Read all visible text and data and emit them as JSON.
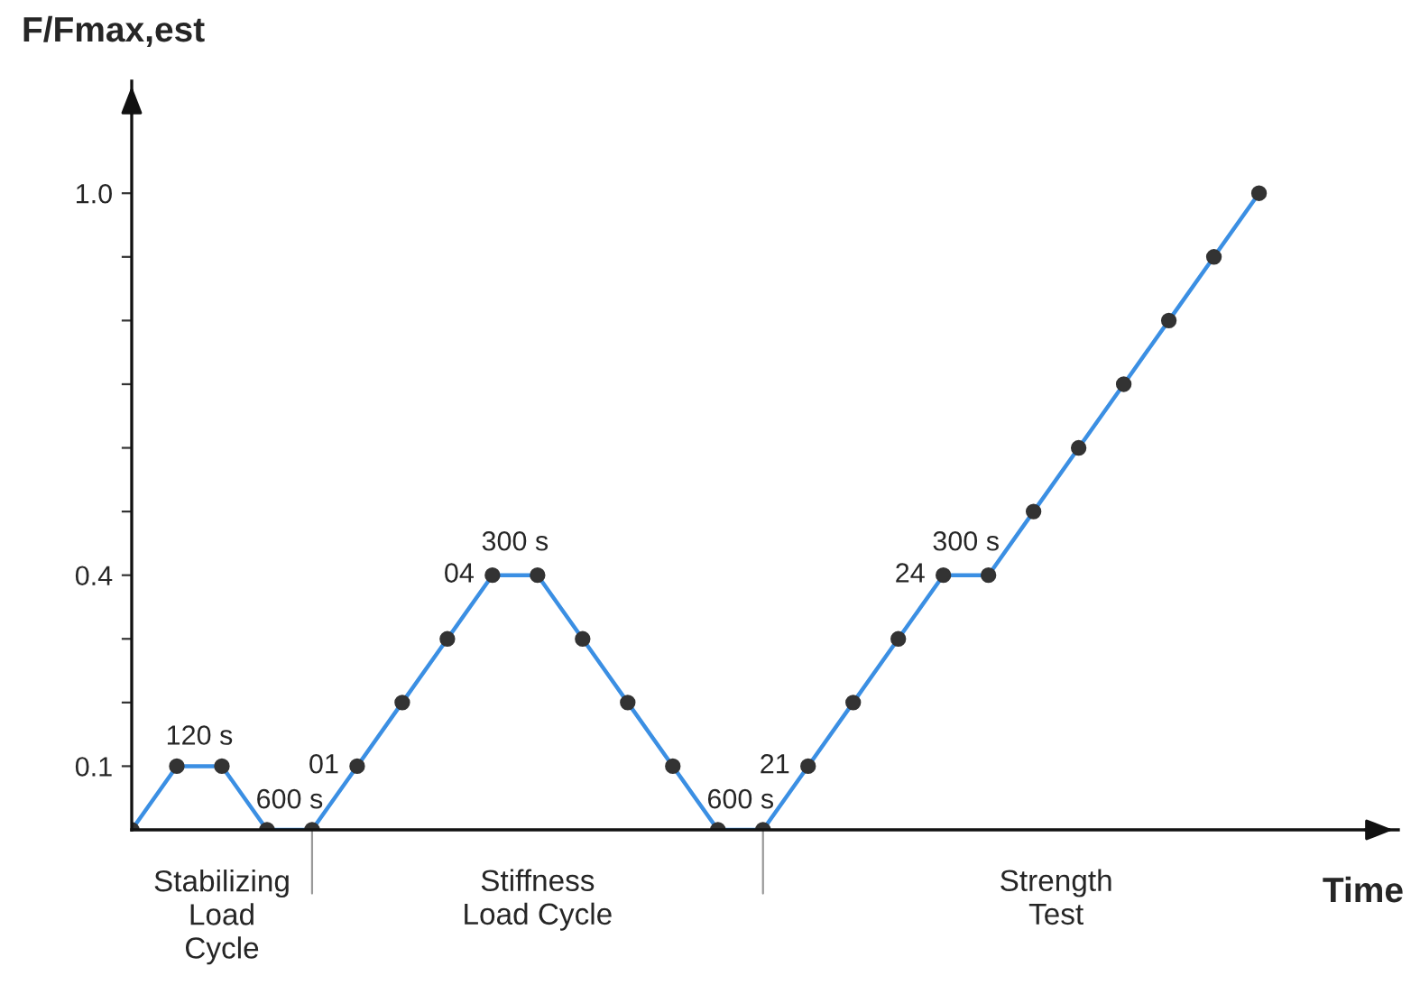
{
  "chart_data": {
    "type": "line",
    "xlabel": "Time",
    "ylabel": "F/Fmax,est",
    "categories": [
      null,
      null,
      null,
      null,
      null,
      null,
      null,
      null,
      null,
      null,
      null,
      null,
      null,
      null,
      null,
      null,
      null,
      null,
      null,
      null,
      null,
      null,
      null,
      null,
      null,
      null
    ],
    "series": [
      {
        "color": "#3b8fe3",
        "values": [
          0,
          0.1,
          0.1,
          0,
          0,
          0.1,
          0.2,
          0.3,
          0.4,
          0.4,
          0.3,
          0.2,
          0.1,
          0,
          0,
          0.1,
          0.2,
          0.3,
          0.4,
          0.4,
          0.5,
          0.6,
          0.7,
          0.8,
          0.9,
          1.0
        ]
      }
    ],
    "marker": "circle",
    "line_style": "solid",
    "tick_labels": "y",
    "ylim": [
      0,
      1.176
    ],
    "yticks": [
      0.1,
      {
        "value": 0.2,
        "label": null
      },
      {
        "value": 0.3,
        "label": null
      },
      0.4,
      {
        "value": 0.5,
        "label": null
      },
      {
        "value": 0.6,
        "label": null
      },
      {
        "value": 0.7,
        "label": null
      },
      {
        "value": 0.8,
        "label": null
      },
      {
        "value": 0.9,
        "label": null
      },
      {
        "value": 1.0,
        "label": "1.0"
      }
    ],
    "annotations": [
      "120 s",
      "600 s",
      "01",
      "04",
      "300 s",
      "600 s",
      "21",
      "24",
      "300 s",
      "Stabilizing\nLoad\nCycle",
      "Stiffness\nLoad Cycle",
      "Strength\nTest"
    ]
  }
}
